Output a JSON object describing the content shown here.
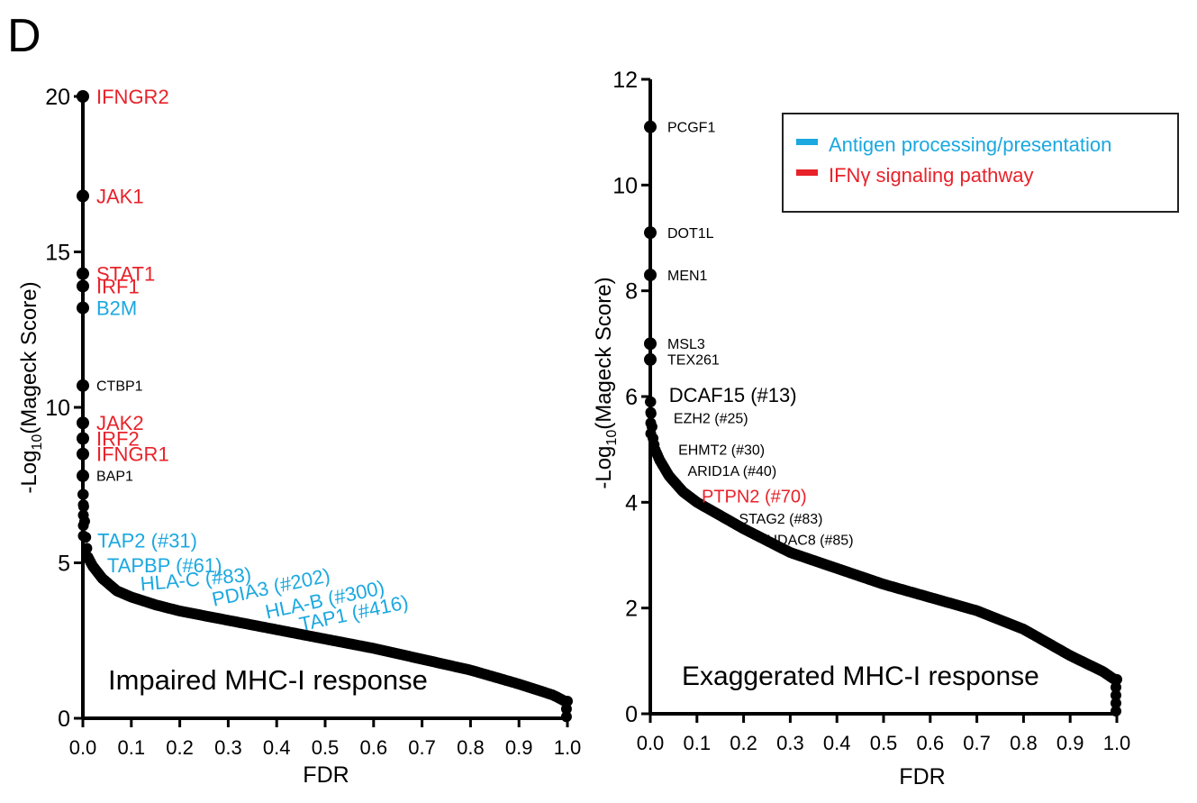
{
  "panel_label": "D",
  "legend": {
    "items": [
      {
        "label": "Antigen processing/presentation",
        "color": "#1ba8e0"
      },
      {
        "label": "IFNγ signaling pathway",
        "color": "#e8222a"
      }
    ]
  },
  "colors": {
    "blue": "#1ba8e0",
    "red": "#e8222a",
    "black": "#000000"
  },
  "chart_data": [
    {
      "type": "scatter",
      "title": "",
      "annotation": "Impaired MHC-I response",
      "xlabel": "FDR",
      "ylabel_main": "-Log",
      "ylabel_sub": "10",
      "ylabel_rest": "(Mageck Score)",
      "xlim": [
        0,
        1
      ],
      "ylim": [
        0,
        20
      ],
      "xticks": [
        "0.0",
        "0.1",
        "0.2",
        "0.3",
        "0.4",
        "0.5",
        "0.6",
        "0.7",
        "0.8",
        "0.9",
        "1.0"
      ],
      "yticks": [
        "0",
        "5",
        "10",
        "15",
        "20"
      ],
      "curve": [
        [
          0,
          7.2
        ],
        [
          0.003,
          6.5
        ],
        [
          0.006,
          5.8
        ],
        [
          0.01,
          5.2
        ],
        [
          0.02,
          4.9
        ],
        [
          0.04,
          4.5
        ],
        [
          0.07,
          4.1
        ],
        [
          0.1,
          3.9
        ],
        [
          0.15,
          3.65
        ],
        [
          0.2,
          3.45
        ],
        [
          0.3,
          3.15
        ],
        [
          0.4,
          2.85
        ],
        [
          0.5,
          2.55
        ],
        [
          0.6,
          2.25
        ],
        [
          0.7,
          1.9
        ],
        [
          0.8,
          1.55
        ],
        [
          0.9,
          1.1
        ],
        [
          0.97,
          0.75
        ],
        [
          0.995,
          0.55
        ]
      ],
      "genes": [
        {
          "label": "IFNGR2",
          "y": 20.0,
          "color": "red"
        },
        {
          "label": "JAK1",
          "y": 16.8,
          "color": "red"
        },
        {
          "label": "STAT1",
          "y": 14.3,
          "color": "red"
        },
        {
          "label": "IRF1",
          "y": 13.9,
          "color": "red"
        },
        {
          "label": "B2M",
          "y": 13.2,
          "color": "blue"
        },
        {
          "label": "CTBP1",
          "y": 10.7,
          "color": "black"
        },
        {
          "label": "JAK2",
          "y": 9.5,
          "color": "red"
        },
        {
          "label": "IRF2",
          "y": 9.0,
          "color": "red"
        },
        {
          "label": "IFNGR1",
          "y": 8.5,
          "color": "red"
        },
        {
          "label": "BAP1",
          "y": 7.8,
          "color": "black"
        }
      ],
      "ranked": [
        {
          "label": "TAP2 (#31)",
          "x": 0.03,
          "y": 5.5,
          "color": "blue",
          "rotate": 0
        },
        {
          "label": "TAPBP (#61)",
          "x": 0.05,
          "y": 4.7,
          "color": "blue",
          "rotate": 0
        },
        {
          "label": "HLA-C (#83)",
          "x": 0.12,
          "y": 4.1,
          "color": "blue",
          "rotate": -5
        },
        {
          "label": "PDIA3 (#202)",
          "x": 0.27,
          "y": 3.6,
          "color": "blue",
          "rotate": -12
        },
        {
          "label": "HLA-B (#300)",
          "x": 0.38,
          "y": 3.2,
          "color": "blue",
          "rotate": -12
        },
        {
          "label": "TAP1 (#416)",
          "x": 0.45,
          "y": 2.8,
          "color": "blue",
          "rotate": -12
        }
      ]
    },
    {
      "type": "scatter",
      "title": "",
      "annotation": "Exaggerated MHC-I response",
      "xlabel": "FDR",
      "ylabel_main": "-Log",
      "ylabel_sub": "10",
      "ylabel_rest": "(Mageck Score)",
      "xlim": [
        0,
        1
      ],
      "ylim": [
        0,
        12
      ],
      "xticks": [
        "0.0",
        "0.1",
        "0.2",
        "0.3",
        "0.4",
        "0.5",
        "0.6",
        "0.7",
        "0.8",
        "0.9",
        "1.0"
      ],
      "yticks": [
        "0",
        "2",
        "4",
        "6",
        "8",
        "10",
        "12"
      ],
      "curve": [
        [
          0,
          5.9
        ],
        [
          0.003,
          5.5
        ],
        [
          0.006,
          5.2
        ],
        [
          0.01,
          5.0
        ],
        [
          0.02,
          4.8
        ],
        [
          0.04,
          4.5
        ],
        [
          0.07,
          4.2
        ],
        [
          0.1,
          4.0
        ],
        [
          0.15,
          3.75
        ],
        [
          0.2,
          3.5
        ],
        [
          0.3,
          3.05
        ],
        [
          0.4,
          2.75
        ],
        [
          0.5,
          2.45
        ],
        [
          0.6,
          2.2
        ],
        [
          0.7,
          1.95
        ],
        [
          0.8,
          1.6
        ],
        [
          0.9,
          1.1
        ],
        [
          0.97,
          0.8
        ],
        [
          0.995,
          0.65
        ]
      ],
      "genes": [
        {
          "label": "PCGF1",
          "y": 11.1,
          "color": "black"
        },
        {
          "label": "DOT1L",
          "y": 9.1,
          "color": "black"
        },
        {
          "label": "MEN1",
          "y": 8.3,
          "color": "black"
        },
        {
          "label": "MSL3",
          "y": 7.0,
          "color": "black"
        },
        {
          "label": "TEX261",
          "y": 6.7,
          "color": "black"
        }
      ],
      "ranked": [
        {
          "label": "DCAF15 (#13)",
          "x": 0.04,
          "y": 5.9,
          "color": "black",
          "rotate": 0,
          "size": 22
        },
        {
          "label": "EZH2 (#25)",
          "x": 0.05,
          "y": 5.5,
          "color": "black",
          "rotate": 0,
          "size": 16
        },
        {
          "label": "EHMT2 (#30)",
          "x": 0.06,
          "y": 4.9,
          "color": "black",
          "rotate": 0,
          "size": 16
        },
        {
          "label": "ARID1A (#40)",
          "x": 0.08,
          "y": 4.5,
          "color": "black",
          "rotate": 0,
          "size": 16
        },
        {
          "label": "PTPN2 (#70)",
          "x": 0.11,
          "y": 4.0,
          "color": "red",
          "rotate": 0,
          "size": 20
        },
        {
          "label": "STAG2 (#83)",
          "x": 0.19,
          "y": 3.6,
          "color": "black",
          "rotate": 0,
          "size": 16
        },
        {
          "label": "HDAC8 (#85)",
          "x": 0.25,
          "y": 3.2,
          "color": "black",
          "rotate": 0,
          "size": 16
        }
      ]
    }
  ]
}
